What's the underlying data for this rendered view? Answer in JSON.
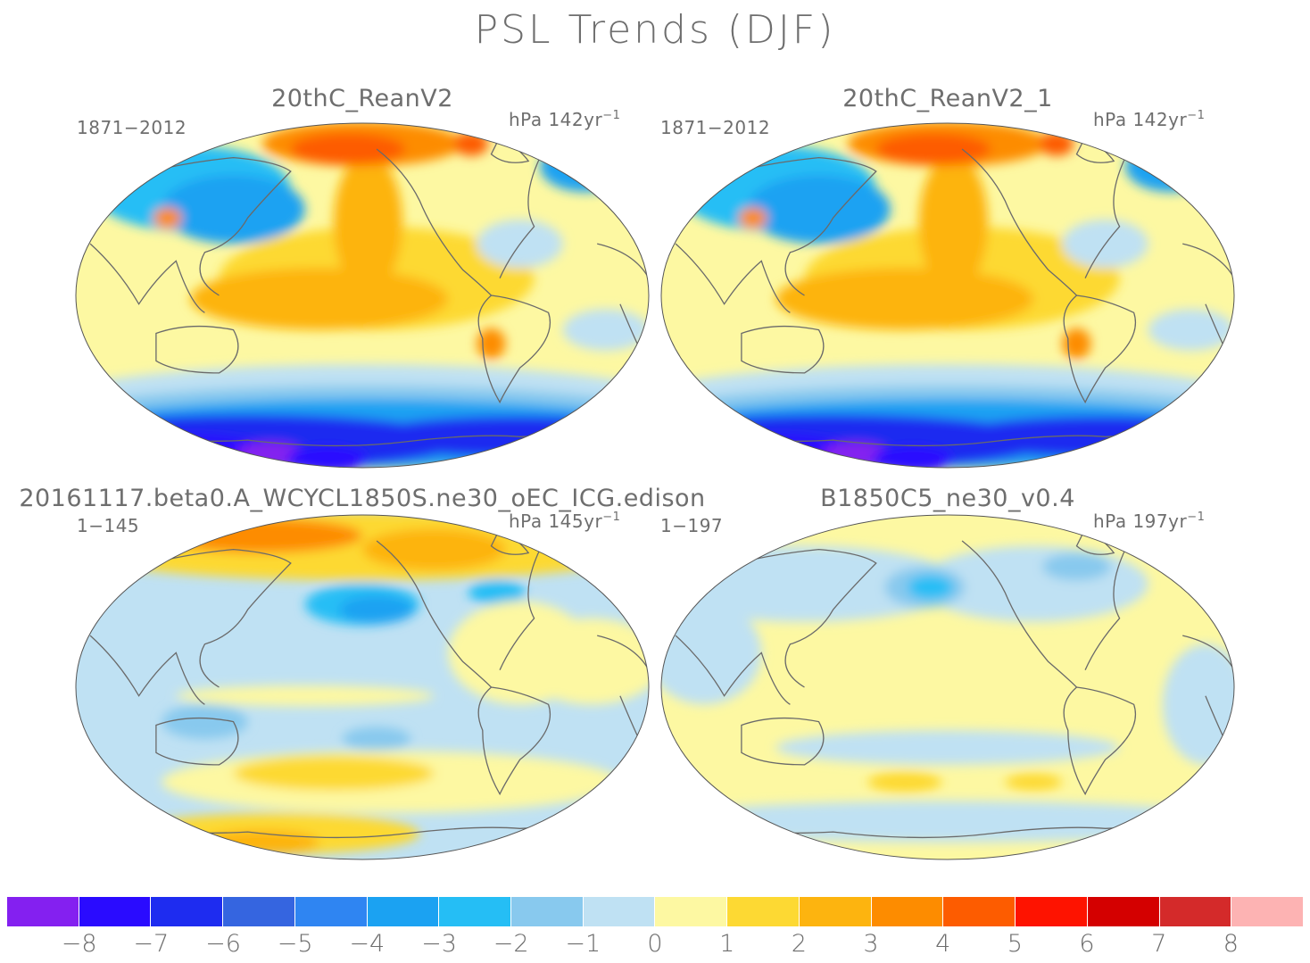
{
  "title": "PSL Trends (DJF)",
  "panels": [
    {
      "title": "20thC_ReanV2",
      "left_label": "1871−2012",
      "units_label": "hPa 142yr",
      "units_exp": "−1",
      "pattern": "rean"
    },
    {
      "title": "20thC_ReanV2_1",
      "left_label": "1871−2012",
      "units_label": "hPa 142yr",
      "units_exp": "−1",
      "pattern": "rean"
    },
    {
      "title": "20161117.beta0.A_WCYCL1850S.ne30_oEC_ICG.edison",
      "left_label": "1−145",
      "units_label": "hPa 145yr",
      "units_exp": "−1",
      "pattern": "acme"
    },
    {
      "title": "B1850C5_ne30_v0.4",
      "left_label": "1−197",
      "units_label": "hPa 197yr",
      "units_exp": "−1",
      "pattern": "cesm"
    }
  ],
  "colorbar": {
    "colors": [
      "#8420f0",
      "#2a0bff",
      "#1e2cf0",
      "#3565e0",
      "#2f85f2",
      "#1ba2f2",
      "#25bef5",
      "#88c9ee",
      "#bfe1f3",
      "#fdf8a2",
      "#fdd933",
      "#fdb40f",
      "#fd8c00",
      "#fd5c00",
      "#fe1300",
      "#d40000",
      "#d42a2a",
      "#fdb3b3"
    ],
    "labels": [
      "−8",
      "−7",
      "−6",
      "−5",
      "−4",
      "−3",
      "−2",
      "−1",
      "0",
      "1",
      "2",
      "3",
      "4",
      "5",
      "6",
      "7",
      "8"
    ]
  }
}
